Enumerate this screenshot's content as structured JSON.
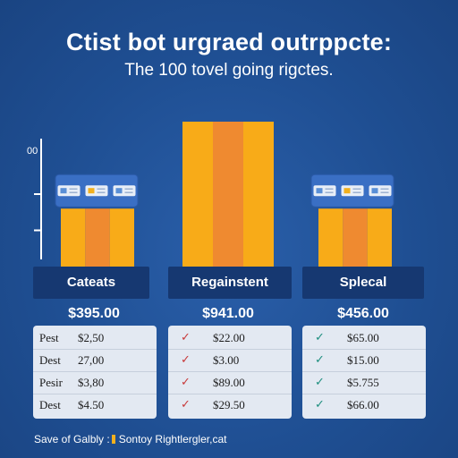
{
  "header": {
    "title": "Ctist bot urgraed outrppcte:",
    "subtitle": "The 100 tovel going rigctes."
  },
  "axis": {
    "top_label": "00"
  },
  "colors": {
    "background": "#1f4f93",
    "bar_outer": "#f8ab18",
    "bar_middle": "#ef8a30",
    "panel": "#e3e9f2",
    "label_band": "#163871",
    "check_red": "#c83a3a",
    "check_teal": "#1f8f7f",
    "footer_accent": "#f2b01e"
  },
  "chart_data": {
    "type": "bar",
    "categories": [
      "Cateats",
      "Regainstent",
      "Splecal"
    ],
    "values": [
      4,
      10,
      4
    ],
    "ylim": [
      0,
      10
    ],
    "totals": [
      "$395.00",
      "$941.00",
      "$456.00"
    ],
    "card_icons": [
      true,
      false,
      true
    ]
  },
  "panels": [
    {
      "mark": "none",
      "rows": [
        {
          "name": "Pest",
          "value": "$2,50"
        },
        {
          "name": "Dest",
          "value": "27,00"
        },
        {
          "name": "Pesir",
          "value": "$3,80"
        },
        {
          "name": "Dest",
          "value": "$4.50"
        }
      ]
    },
    {
      "mark": "check-red",
      "rows": [
        {
          "name": "",
          "value": "$22.00"
        },
        {
          "name": "",
          "value": "$3.00"
        },
        {
          "name": "",
          "value": "$89.00"
        },
        {
          "name": "",
          "value": "$29.50"
        }
      ]
    },
    {
      "mark": "check-teal",
      "rows": [
        {
          "name": "",
          "value": "$65.00"
        },
        {
          "name": "",
          "value": "$15.00"
        },
        {
          "name": "",
          "value": "$5.755"
        },
        {
          "name": "",
          "value": "$66.00"
        }
      ]
    }
  ],
  "footer": {
    "left": "Save of Galbly :",
    "right": "Sontoy Rightlergler,cat"
  }
}
